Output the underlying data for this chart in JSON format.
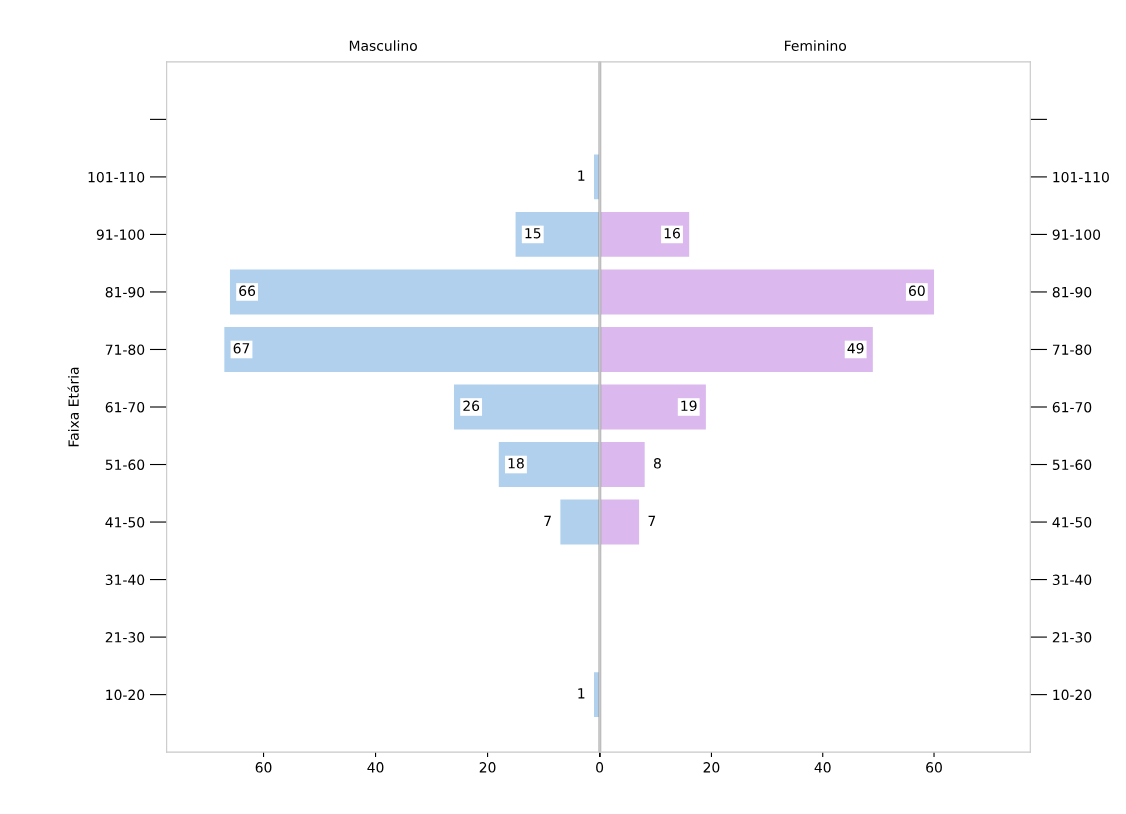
{
  "chart_data": [
    {
      "type": "bar",
      "orientation": "horizontal",
      "title": "Masculino",
      "ylabel": "Faixa Etária",
      "categories": [
        null,
        "101-110",
        "91-100",
        "81-90",
        "71-80",
        "61-70",
        "51-60",
        "41-50",
        "31-40",
        "21-30",
        "10-20"
      ],
      "values": [
        null,
        1,
        15,
        66,
        67,
        26,
        18,
        7,
        null,
        null,
        1
      ],
      "color": "#b0d0ee",
      "xlim": [
        77.3,
        0
      ],
      "xticks": [
        60,
        40,
        20,
        0
      ],
      "data_labels": true,
      "grid": false,
      "legend": false
    },
    {
      "type": "bar",
      "orientation": "horizontal",
      "title": "Feminino",
      "categories": [
        null,
        "101-110",
        "91-100",
        "81-90",
        "71-80",
        "61-70",
        "51-60",
        "41-50",
        "31-40",
        "21-30",
        "10-20"
      ],
      "values": [
        null,
        null,
        16,
        60,
        49,
        19,
        8,
        7,
        null,
        null,
        null
      ],
      "color": "#dbb8ee",
      "xlim": [
        0,
        77.3
      ],
      "xticks": [
        {
          "value": 0,
          "label": null
        },
        20,
        40,
        60
      ],
      "data_labels": true,
      "grid": false,
      "legend": false
    }
  ]
}
